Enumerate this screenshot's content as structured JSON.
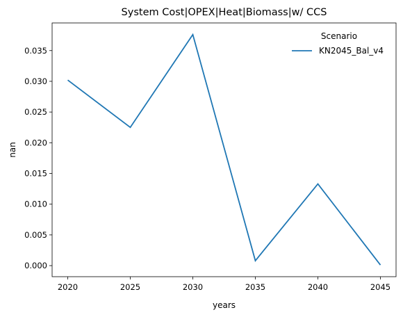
{
  "chart_data": {
    "type": "line",
    "title": "System Cost|OPEX|Heat|Biomass|w/ CCS",
    "xlabel": "years",
    "ylabel": "nan",
    "x": [
      2020,
      2025,
      2030,
      2035,
      2040,
      2045
    ],
    "series": [
      {
        "name": "KN2045_Bal_v4",
        "values": [
          0.0302,
          0.0225,
          0.0376,
          0.0008,
          0.0133,
          0.0001
        ],
        "color": "#1f77b4"
      }
    ],
    "xticks": [
      "2020",
      "2025",
      "2030",
      "2035",
      "2040",
      "2045"
    ],
    "yticks": [
      "0.000",
      "0.005",
      "0.010",
      "0.015",
      "0.020",
      "0.025",
      "0.030",
      "0.035"
    ],
    "xlim": [
      2018.75,
      2046.25
    ],
    "ylim": [
      -0.0018,
      0.0395
    ],
    "grid": false,
    "legend": {
      "title": "Scenario",
      "placement": "top-right"
    }
  }
}
